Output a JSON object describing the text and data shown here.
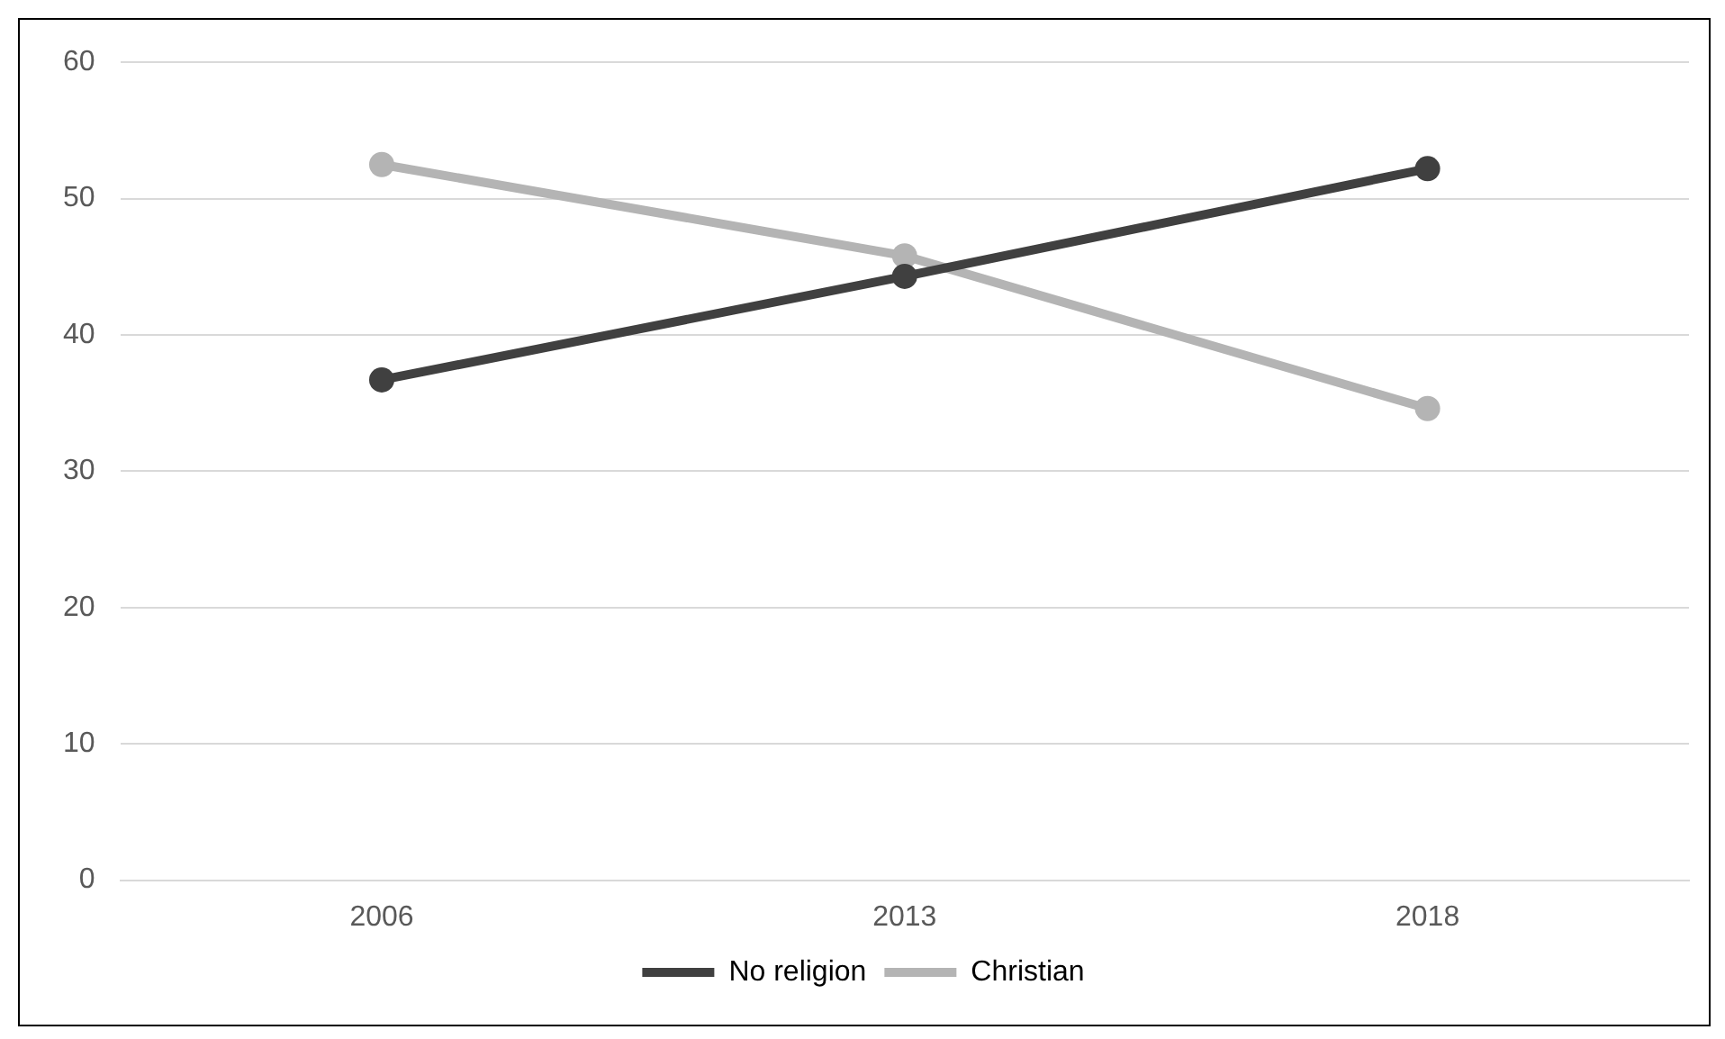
{
  "chart_data": {
    "type": "line",
    "categories": [
      "2006",
      "2013",
      "2018"
    ],
    "series": [
      {
        "name": "No religion",
        "color": "#404040",
        "values": [
          36.7,
          44.3,
          52.2
        ]
      },
      {
        "name": "Christian",
        "color": "#b4b4b4",
        "values": [
          52.5,
          45.8,
          34.6
        ]
      }
    ],
    "ylim": [
      0,
      60
    ],
    "yticks": [
      0,
      10,
      20,
      30,
      40,
      50,
      60
    ],
    "grid": "y",
    "legend": "bottom",
    "marker": "circle",
    "line_style": "solid"
  }
}
